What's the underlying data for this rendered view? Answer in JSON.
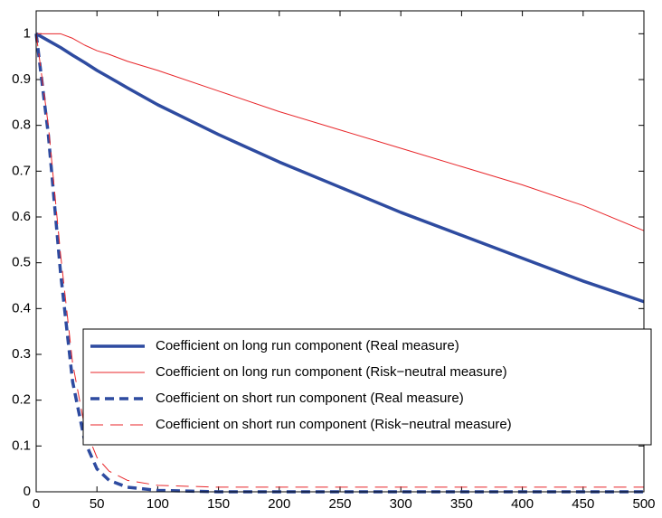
{
  "chart_data": {
    "type": "line",
    "x": [
      0,
      10,
      20,
      30,
      40,
      50,
      60,
      75,
      100,
      150,
      200,
      250,
      300,
      350,
      400,
      450,
      500
    ],
    "series": [
      {
        "name": "Coefficient on long run component (Real measure)",
        "color": "#2e4ba0",
        "width": 3.5,
        "dash": false,
        "values": [
          1,
          0.985,
          0.97,
          0.953,
          0.937,
          0.92,
          0.905,
          0.882,
          0.845,
          0.78,
          0.72,
          0.665,
          0.61,
          0.56,
          0.51,
          0.46,
          0.415
        ]
      },
      {
        "name": "Coefficient on long run component (Risk−neutral measure)",
        "color": "#e8262a",
        "width": 1,
        "dash": false,
        "values": [
          1,
          1,
          1,
          0.99,
          0.975,
          0.963,
          0.955,
          0.94,
          0.92,
          0.875,
          0.83,
          0.79,
          0.75,
          0.71,
          0.67,
          0.625,
          0.57
        ]
      },
      {
        "name": "Coefficient on short run component (Real measure)",
        "color": "#2e4ba0",
        "width": 3.5,
        "dash": true,
        "values": [
          1,
          0.78,
          0.48,
          0.24,
          0.11,
          0.05,
          0.025,
          0.01,
          0.003,
          0,
          0,
          0,
          0,
          0,
          0,
          0,
          0
        ]
      },
      {
        "name": "Coefficient on short run component (Risk−neutral measure)",
        "color": "#e8262a",
        "width": 1,
        "dash": true,
        "values": [
          1,
          0.8,
          0.52,
          0.28,
          0.14,
          0.075,
          0.045,
          0.025,
          0.014,
          0.01,
          0.01,
          0.01,
          0.01,
          0.01,
          0.01,
          0.01,
          0.01
        ]
      }
    ],
    "xlim": [
      0,
      500
    ],
    "xticks": [
      0,
      50,
      100,
      150,
      200,
      250,
      300,
      350,
      400,
      450,
      500
    ],
    "ylim": [
      0,
      1.05
    ],
    "yticks": [
      0,
      0.1,
      0.2,
      0.3,
      0.4,
      0.5,
      0.6,
      0.7,
      0.8,
      0.9,
      1
    ],
    "legend": "lower-right"
  }
}
